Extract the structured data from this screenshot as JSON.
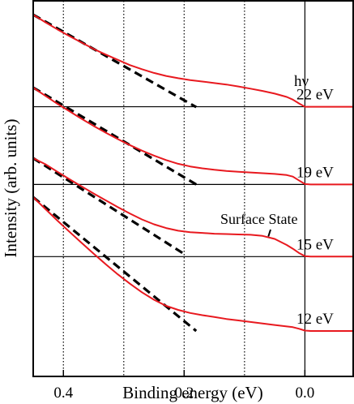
{
  "chart_data": {
    "type": "line",
    "xlabel": "Binding energy (eV)",
    "ylabel": "Intensity (arb. units)",
    "xlim": [
      0.45,
      -0.08
    ],
    "x_reversed": true,
    "xticks": [
      {
        "value": 0.4,
        "label": "0.4"
      },
      {
        "value": 0.2,
        "label": "0.2"
      },
      {
        "value": 0.0,
        "label": "0.0"
      }
    ],
    "grid": {
      "vertical_dotted_at": [
        0.4,
        0.3,
        0.2,
        0.1
      ],
      "solid_at": [
        0.0
      ]
    },
    "legend_title": "hν",
    "annotations": [
      {
        "text": "Surface State",
        "points_to_x": 0.09
      }
    ],
    "colors": {
      "spectrum": "#e8191f",
      "fermi_edge_fit": "#000000",
      "baseline": "#000000"
    },
    "series": [
      {
        "name": "22 eV",
        "baseline": 0.718,
        "x": [
          0.45,
          0.43,
          0.41,
          0.39,
          0.37,
          0.35,
          0.33,
          0.31,
          0.29,
          0.27,
          0.25,
          0.23,
          0.21,
          0.19,
          0.17,
          0.15,
          0.13,
          0.11,
          0.09,
          0.07,
          0.05,
          0.03,
          0.02,
          0.01,
          0.0,
          -0.01,
          -0.03,
          -0.05,
          -0.08
        ],
        "y": [
          0.963,
          0.943,
          0.924,
          0.906,
          0.889,
          0.872,
          0.857,
          0.843,
          0.829,
          0.818,
          0.808,
          0.8,
          0.794,
          0.789,
          0.785,
          0.781,
          0.777,
          0.772,
          0.766,
          0.76,
          0.753,
          0.744,
          0.737,
          0.727,
          0.718,
          0.718,
          0.718,
          0.718,
          0.718
        ],
        "linear_fit": {
          "x": [
            0.45,
            0.18
          ],
          "y": [
            0.963,
            0.717
          ]
        }
      },
      {
        "name": "19 eV",
        "baseline": 0.511,
        "x": [
          0.45,
          0.43,
          0.41,
          0.39,
          0.37,
          0.35,
          0.33,
          0.31,
          0.29,
          0.27,
          0.25,
          0.23,
          0.21,
          0.19,
          0.17,
          0.15,
          0.13,
          0.11,
          0.09,
          0.07,
          0.05,
          0.03,
          0.02,
          0.01,
          0.0,
          -0.01,
          -0.03,
          -0.05,
          -0.08
        ],
        "y": [
          0.769,
          0.747,
          0.726,
          0.706,
          0.686,
          0.667,
          0.649,
          0.632,
          0.616,
          0.601,
          0.588,
          0.576,
          0.566,
          0.559,
          0.554,
          0.55,
          0.547,
          0.545,
          0.543,
          0.541,
          0.539,
          0.536,
          0.532,
          0.522,
          0.512,
          0.511,
          0.511,
          0.511,
          0.511
        ],
        "linear_fit": {
          "x": [
            0.45,
            0.18
          ],
          "y": [
            0.769,
            0.511
          ]
        }
      },
      {
        "name": "15 eV",
        "baseline": 0.319,
        "x": [
          0.45,
          0.43,
          0.41,
          0.39,
          0.37,
          0.35,
          0.33,
          0.31,
          0.29,
          0.27,
          0.25,
          0.23,
          0.21,
          0.19,
          0.17,
          0.15,
          0.13,
          0.11,
          0.09,
          0.07,
          0.05,
          0.03,
          0.02,
          0.01,
          0.0,
          -0.01,
          -0.03,
          -0.05,
          -0.08
        ],
        "y": [
          0.581,
          0.565,
          0.545,
          0.525,
          0.506,
          0.487,
          0.469,
          0.451,
          0.434,
          0.418,
          0.405,
          0.395,
          0.388,
          0.384,
          0.382,
          0.38,
          0.379,
          0.378,
          0.377,
          0.374,
          0.366,
          0.35,
          0.34,
          0.329,
          0.32,
          0.319,
          0.319,
          0.319,
          0.319
        ],
        "linear_fit": {
          "x": [
            0.45,
            0.2
          ],
          "y": [
            0.581,
            0.326
          ]
        }
      },
      {
        "name": "12 eV",
        "baseline": 0.121,
        "x": [
          0.45,
          0.43,
          0.41,
          0.39,
          0.37,
          0.35,
          0.33,
          0.31,
          0.29,
          0.27,
          0.25,
          0.23,
          0.21,
          0.19,
          0.17,
          0.15,
          0.13,
          0.11,
          0.09,
          0.07,
          0.05,
          0.03,
          0.02,
          0.01,
          0.0,
          -0.01,
          -0.03,
          -0.05,
          -0.08
        ],
        "y": [
          0.477,
          0.446,
          0.415,
          0.385,
          0.356,
          0.327,
          0.299,
          0.272,
          0.247,
          0.224,
          0.204,
          0.188,
          0.177,
          0.169,
          0.163,
          0.158,
          0.153,
          0.149,
          0.145,
          0.141,
          0.137,
          0.133,
          0.131,
          0.127,
          0.122,
          0.121,
          0.121,
          0.121,
          0.121
        ],
        "linear_fit": {
          "x": [
            0.45,
            0.18
          ],
          "y": [
            0.477,
            0.121
          ]
        }
      }
    ]
  }
}
